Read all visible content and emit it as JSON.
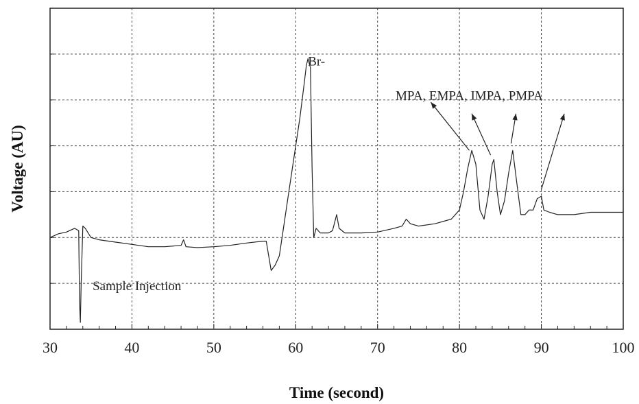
{
  "chart_data": {
    "type": "line",
    "title": "",
    "xlabel": "Time (second)",
    "ylabel": "Voltage (AU)",
    "xlim": [
      30,
      100
    ],
    "ylim": [
      0,
      7
    ],
    "x_ticks": [
      30,
      40,
      50,
      60,
      70,
      80,
      90,
      100
    ],
    "y_gridlines": [
      1,
      2,
      3,
      4,
      5,
      6,
      7
    ],
    "grid": true,
    "series": [
      {
        "points": [
          [
            30,
            2.0
          ],
          [
            31,
            2.08
          ],
          [
            32,
            2.12
          ],
          [
            33,
            2.2
          ],
          [
            33.5,
            2.15
          ],
          [
            33.6,
            0.6
          ],
          [
            33.7,
            0.15
          ],
          [
            33.8,
            1.0
          ],
          [
            34,
            2.25
          ],
          [
            34.3,
            2.2
          ],
          [
            35,
            2.0
          ],
          [
            36,
            1.95
          ],
          [
            38,
            1.9
          ],
          [
            40,
            1.85
          ],
          [
            42,
            1.8
          ],
          [
            44,
            1.8
          ],
          [
            46,
            1.83
          ],
          [
            46.3,
            1.95
          ],
          [
            46.6,
            1.8
          ],
          [
            48,
            1.78
          ],
          [
            50,
            1.8
          ],
          [
            52,
            1.83
          ],
          [
            54,
            1.88
          ],
          [
            56,
            1.92
          ],
          [
            56.4,
            1.92
          ],
          [
            57,
            1.28
          ],
          [
            57.5,
            1.4
          ],
          [
            58,
            1.6
          ],
          [
            58.5,
            2.2
          ],
          [
            59,
            2.8
          ],
          [
            59.5,
            3.4
          ],
          [
            60,
            4.0
          ],
          [
            60.5,
            4.6
          ],
          [
            61,
            5.3
          ],
          [
            61.3,
            5.75
          ],
          [
            61.5,
            5.9
          ],
          [
            61.8,
            5.7
          ],
          [
            62,
            3.5
          ],
          [
            62.2,
            2.0
          ],
          [
            62.5,
            2.2
          ],
          [
            63,
            2.1
          ],
          [
            64,
            2.1
          ],
          [
            64.5,
            2.15
          ],
          [
            65,
            2.5
          ],
          [
            65.3,
            2.2
          ],
          [
            66,
            2.1
          ],
          [
            68,
            2.1
          ],
          [
            70,
            2.12
          ],
          [
            72,
            2.2
          ],
          [
            73,
            2.25
          ],
          [
            73.5,
            2.4
          ],
          [
            74,
            2.3
          ],
          [
            75,
            2.25
          ],
          [
            77,
            2.3
          ],
          [
            79,
            2.4
          ],
          [
            80,
            2.6
          ],
          [
            80.5,
            3.0
          ],
          [
            81,
            3.5
          ],
          [
            81.5,
            3.9
          ],
          [
            82,
            3.6
          ],
          [
            82.5,
            2.6
          ],
          [
            83,
            2.4
          ],
          [
            83.5,
            2.9
          ],
          [
            84,
            3.6
          ],
          [
            84.2,
            3.7
          ],
          [
            84.6,
            3.0
          ],
          [
            85,
            2.5
          ],
          [
            85.5,
            2.8
          ],
          [
            86,
            3.4
          ],
          [
            86.5,
            3.9
          ],
          [
            87,
            3.2
          ],
          [
            87.5,
            2.5
          ],
          [
            88,
            2.5
          ],
          [
            88.5,
            2.6
          ],
          [
            89,
            2.6
          ],
          [
            89.5,
            2.85
          ],
          [
            90,
            2.9
          ],
          [
            90.3,
            2.6
          ],
          [
            91,
            2.55
          ],
          [
            92,
            2.5
          ],
          [
            94,
            2.5
          ],
          [
            96,
            2.55
          ],
          [
            98,
            2.55
          ],
          [
            100,
            2.55
          ]
        ]
      }
    ],
    "annotations": [
      {
        "text": "Sample Injection",
        "x": 35.2,
        "y": 0.85
      },
      {
        "text": "Br-",
        "x": 61.5,
        "y": 5.75
      },
      {
        "text": "MPA, EMPA, IMPA, PMPA",
        "x": 72.2,
        "y": 5.0
      }
    ],
    "arrows": [
      {
        "from": [
          81.2,
          3.9
        ],
        "to": [
          76.5,
          4.95
        ]
      },
      {
        "from": [
          83.8,
          3.8
        ],
        "to": [
          81.5,
          4.7
        ]
      },
      {
        "from": [
          86.3,
          4.05
        ],
        "to": [
          86.9,
          4.7
        ]
      },
      {
        "from": [
          90.0,
          3.05
        ],
        "to": [
          92.8,
          4.7
        ]
      }
    ]
  }
}
